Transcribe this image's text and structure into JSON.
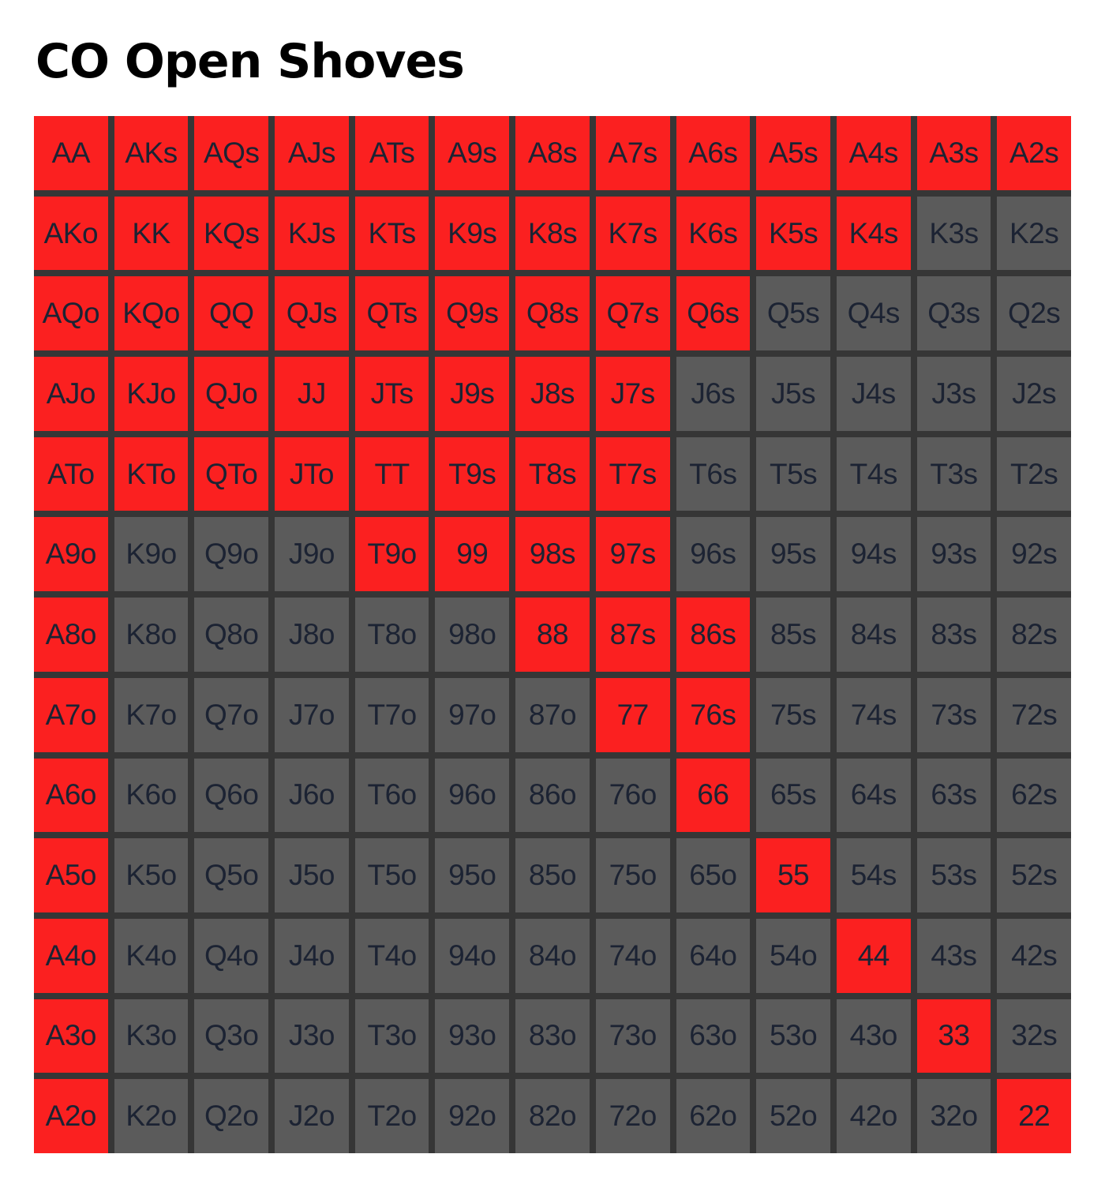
{
  "title": "CO Open Shoves",
  "grid": {
    "rows": [
      [
        {
          "hand": "AA",
          "color": "#fb2020"
        },
        {
          "hand": "AKs",
          "color": "#fb2020"
        },
        {
          "hand": "AQs",
          "color": "#fb2020"
        },
        {
          "hand": "AJs",
          "color": "#fb2020"
        },
        {
          "hand": "ATs",
          "color": "#fb2020"
        },
        {
          "hand": "A9s",
          "color": "#fb2020"
        },
        {
          "hand": "A8s",
          "color": "#fb2020"
        },
        {
          "hand": "A7s",
          "color": "#fb2020"
        },
        {
          "hand": "A6s",
          "color": "#fb2020"
        },
        {
          "hand": "A5s",
          "color": "#fb2020"
        },
        {
          "hand": "A4s",
          "color": "#fb2020"
        },
        {
          "hand": "A3s",
          "color": "#fb2020"
        },
        {
          "hand": "A2s",
          "color": "#fb2020"
        }
      ],
      [
        {
          "hand": "AKo",
          "color": "#fb2020"
        },
        {
          "hand": "KK",
          "color": "#fb2020"
        },
        {
          "hand": "KQs",
          "color": "#fb2020"
        },
        {
          "hand": "KJs",
          "color": "#fb2020"
        },
        {
          "hand": "KTs",
          "color": "#fb2020"
        },
        {
          "hand": "K9s",
          "color": "#fb2020"
        },
        {
          "hand": "K8s",
          "color": "#fb2020"
        },
        {
          "hand": "K7s",
          "color": "#fb2020"
        },
        {
          "hand": "K6s",
          "color": "#fb2020"
        },
        {
          "hand": "K5s",
          "color": "#fb2020"
        },
        {
          "hand": "K4s",
          "color": "#fb2020"
        },
        {
          "hand": "K3s",
          "color": "#5b5b5b"
        },
        {
          "hand": "K2s",
          "color": "#5b5b5b"
        }
      ],
      [
        {
          "hand": "AQo",
          "color": "#fb2020"
        },
        {
          "hand": "KQo",
          "color": "#fb2020"
        },
        {
          "hand": "QQ",
          "color": "#fb2020"
        },
        {
          "hand": "QJs",
          "color": "#fb2020"
        },
        {
          "hand": "QTs",
          "color": "#fb2020"
        },
        {
          "hand": "Q9s",
          "color": "#fb2020"
        },
        {
          "hand": "Q8s",
          "color": "#fb2020"
        },
        {
          "hand": "Q7s",
          "color": "#fb2020"
        },
        {
          "hand": "Q6s",
          "color": "#fb2020"
        },
        {
          "hand": "Q5s",
          "color": "#5b5b5b"
        },
        {
          "hand": "Q4s",
          "color": "#5b5b5b"
        },
        {
          "hand": "Q3s",
          "color": "#5b5b5b"
        },
        {
          "hand": "Q2s",
          "color": "#5b5b5b"
        }
      ],
      [
        {
          "hand": "AJo",
          "color": "#fb2020"
        },
        {
          "hand": "KJo",
          "color": "#fb2020"
        },
        {
          "hand": "QJo",
          "color": "#fb2020"
        },
        {
          "hand": "JJ",
          "color": "#fb2020"
        },
        {
          "hand": "JTs",
          "color": "#fb2020"
        },
        {
          "hand": "J9s",
          "color": "#fb2020"
        },
        {
          "hand": "J8s",
          "color": "#fb2020"
        },
        {
          "hand": "J7s",
          "color": "#fb2020"
        },
        {
          "hand": "J6s",
          "color": "#5b5b5b"
        },
        {
          "hand": "J5s",
          "color": "#5b5b5b"
        },
        {
          "hand": "J4s",
          "color": "#5b5b5b"
        },
        {
          "hand": "J3s",
          "color": "#5b5b5b"
        },
        {
          "hand": "J2s",
          "color": "#5b5b5b"
        }
      ],
      [
        {
          "hand": "ATo",
          "color": "#fb2020"
        },
        {
          "hand": "KTo",
          "color": "#fb2020"
        },
        {
          "hand": "QTo",
          "color": "#fb2020"
        },
        {
          "hand": "JTo",
          "color": "#fb2020"
        },
        {
          "hand": "TT",
          "color": "#fb2020"
        },
        {
          "hand": "T9s",
          "color": "#fb2020"
        },
        {
          "hand": "T8s",
          "color": "#fb2020"
        },
        {
          "hand": "T7s",
          "color": "#fb2020"
        },
        {
          "hand": "T6s",
          "color": "#5b5b5b"
        },
        {
          "hand": "T5s",
          "color": "#5b5b5b"
        },
        {
          "hand": "T4s",
          "color": "#5b5b5b"
        },
        {
          "hand": "T3s",
          "color": "#5b5b5b"
        },
        {
          "hand": "T2s",
          "color": "#5b5b5b"
        }
      ],
      [
        {
          "hand": "A9o",
          "color": "#fb2020"
        },
        {
          "hand": "K9o",
          "color": "#5b5b5b"
        },
        {
          "hand": "Q9o",
          "color": "#5b5b5b"
        },
        {
          "hand": "J9o",
          "color": "#5b5b5b"
        },
        {
          "hand": "T9o",
          "color": "#fb2020"
        },
        {
          "hand": "99",
          "color": "#fb2020"
        },
        {
          "hand": "98s",
          "color": "#fb2020"
        },
        {
          "hand": "97s",
          "color": "#fb2020"
        },
        {
          "hand": "96s",
          "color": "#5b5b5b"
        },
        {
          "hand": "95s",
          "color": "#5b5b5b"
        },
        {
          "hand": "94s",
          "color": "#5b5b5b"
        },
        {
          "hand": "93s",
          "color": "#5b5b5b"
        },
        {
          "hand": "92s",
          "color": "#5b5b5b"
        }
      ],
      [
        {
          "hand": "A8o",
          "color": "#fb2020"
        },
        {
          "hand": "K8o",
          "color": "#5b5b5b"
        },
        {
          "hand": "Q8o",
          "color": "#5b5b5b"
        },
        {
          "hand": "J8o",
          "color": "#5b5b5b"
        },
        {
          "hand": "T8o",
          "color": "#5b5b5b"
        },
        {
          "hand": "98o",
          "color": "#5b5b5b"
        },
        {
          "hand": "88",
          "color": "#fb2020"
        },
        {
          "hand": "87s",
          "color": "#fb2020"
        },
        {
          "hand": "86s",
          "color": "#fb2020"
        },
        {
          "hand": "85s",
          "color": "#5b5b5b"
        },
        {
          "hand": "84s",
          "color": "#5b5b5b"
        },
        {
          "hand": "83s",
          "color": "#5b5b5b"
        },
        {
          "hand": "82s",
          "color": "#5b5b5b"
        }
      ],
      [
        {
          "hand": "A7o",
          "color": "#fb2020"
        },
        {
          "hand": "K7o",
          "color": "#5b5b5b"
        },
        {
          "hand": "Q7o",
          "color": "#5b5b5b"
        },
        {
          "hand": "J7o",
          "color": "#5b5b5b"
        },
        {
          "hand": "T7o",
          "color": "#5b5b5b"
        },
        {
          "hand": "97o",
          "color": "#5b5b5b"
        },
        {
          "hand": "87o",
          "color": "#5b5b5b"
        },
        {
          "hand": "77",
          "color": "#fb2020"
        },
        {
          "hand": "76s",
          "color": "#fb2020"
        },
        {
          "hand": "75s",
          "color": "#5b5b5b"
        },
        {
          "hand": "74s",
          "color": "#5b5b5b"
        },
        {
          "hand": "73s",
          "color": "#5b5b5b"
        },
        {
          "hand": "72s",
          "color": "#5b5b5b"
        }
      ],
      [
        {
          "hand": "A6o",
          "color": "#fb2020"
        },
        {
          "hand": "K6o",
          "color": "#5b5b5b"
        },
        {
          "hand": "Q6o",
          "color": "#5b5b5b"
        },
        {
          "hand": "J6o",
          "color": "#5b5b5b"
        },
        {
          "hand": "T6o",
          "color": "#5b5b5b"
        },
        {
          "hand": "96o",
          "color": "#5b5b5b"
        },
        {
          "hand": "86o",
          "color": "#5b5b5b"
        },
        {
          "hand": "76o",
          "color": "#5b5b5b"
        },
        {
          "hand": "66",
          "color": "#fb2020"
        },
        {
          "hand": "65s",
          "color": "#5b5b5b"
        },
        {
          "hand": "64s",
          "color": "#5b5b5b"
        },
        {
          "hand": "63s",
          "color": "#5b5b5b"
        },
        {
          "hand": "62s",
          "color": "#5b5b5b"
        }
      ],
      [
        {
          "hand": "A5o",
          "color": "#fb2020"
        },
        {
          "hand": "K5o",
          "color": "#5b5b5b"
        },
        {
          "hand": "Q5o",
          "color": "#5b5b5b"
        },
        {
          "hand": "J5o",
          "color": "#5b5b5b"
        },
        {
          "hand": "T5o",
          "color": "#5b5b5b"
        },
        {
          "hand": "95o",
          "color": "#5b5b5b"
        },
        {
          "hand": "85o",
          "color": "#5b5b5b"
        },
        {
          "hand": "75o",
          "color": "#5b5b5b"
        },
        {
          "hand": "65o",
          "color": "#5b5b5b"
        },
        {
          "hand": "55",
          "color": "#fb2020"
        },
        {
          "hand": "54s",
          "color": "#5b5b5b"
        },
        {
          "hand": "53s",
          "color": "#5b5b5b"
        },
        {
          "hand": "52s",
          "color": "#5b5b5b"
        }
      ],
      [
        {
          "hand": "A4o",
          "color": "#fb2020"
        },
        {
          "hand": "K4o",
          "color": "#5b5b5b"
        },
        {
          "hand": "Q4o",
          "color": "#5b5b5b"
        },
        {
          "hand": "J4o",
          "color": "#5b5b5b"
        },
        {
          "hand": "T4o",
          "color": "#5b5b5b"
        },
        {
          "hand": "94o",
          "color": "#5b5b5b"
        },
        {
          "hand": "84o",
          "color": "#5b5b5b"
        },
        {
          "hand": "74o",
          "color": "#5b5b5b"
        },
        {
          "hand": "64o",
          "color": "#5b5b5b"
        },
        {
          "hand": "54o",
          "color": "#5b5b5b"
        },
        {
          "hand": "44",
          "color": "#fb2020"
        },
        {
          "hand": "43s",
          "color": "#5b5b5b"
        },
        {
          "hand": "42s",
          "color": "#5b5b5b"
        }
      ],
      [
        {
          "hand": "A3o",
          "color": "#fb2020"
        },
        {
          "hand": "K3o",
          "color": "#5b5b5b"
        },
        {
          "hand": "Q3o",
          "color": "#5b5b5b"
        },
        {
          "hand": "J3o",
          "color": "#5b5b5b"
        },
        {
          "hand": "T3o",
          "color": "#5b5b5b"
        },
        {
          "hand": "93o",
          "color": "#5b5b5b"
        },
        {
          "hand": "83o",
          "color": "#5b5b5b"
        },
        {
          "hand": "73o",
          "color": "#5b5b5b"
        },
        {
          "hand": "63o",
          "color": "#5b5b5b"
        },
        {
          "hand": "53o",
          "color": "#5b5b5b"
        },
        {
          "hand": "43o",
          "color": "#5b5b5b"
        },
        {
          "hand": "33",
          "color": "#fb2020"
        },
        {
          "hand": "32s",
          "color": "#5b5b5b"
        }
      ],
      [
        {
          "hand": "A2o",
          "color": "#fb2020"
        },
        {
          "hand": "K2o",
          "color": "#5b5b5b"
        },
        {
          "hand": "Q2o",
          "color": "#5b5b5b"
        },
        {
          "hand": "J2o",
          "color": "#5b5b5b"
        },
        {
          "hand": "T2o",
          "color": "#5b5b5b"
        },
        {
          "hand": "92o",
          "color": "#5b5b5b"
        },
        {
          "hand": "82o",
          "color": "#5b5b5b"
        },
        {
          "hand": "72o",
          "color": "#5b5b5b"
        },
        {
          "hand": "62o",
          "color": "#5b5b5b"
        },
        {
          "hand": "52o",
          "color": "#5b5b5b"
        },
        {
          "hand": "42o",
          "color": "#5b5b5b"
        },
        {
          "hand": "32o",
          "color": "#5b5b5b"
        },
        {
          "hand": "22",
          "color": "#fb2020"
        }
      ]
    ]
  }
}
